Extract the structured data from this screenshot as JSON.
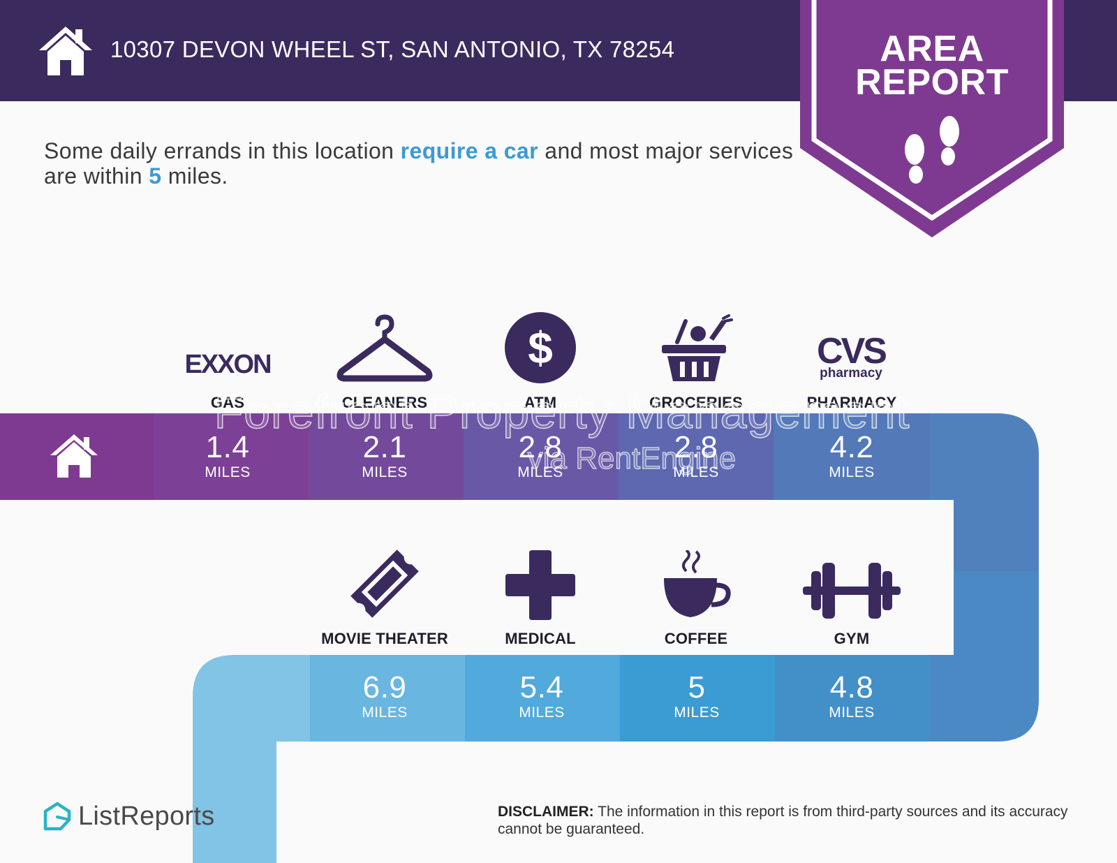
{
  "header": {
    "address": "10307 DEVON WHEEL ST, SAN ANTONIO, TX 78254",
    "home_icon": "house-icon"
  },
  "badge": {
    "line1": "AREA",
    "line2": "REPORT",
    "icon": "footprints-icon"
  },
  "intro": {
    "part1": "Some daily errands in this location ",
    "highlight1": "require a car",
    "part2": " and most major services are within ",
    "highlight2": "5",
    "part3": " miles."
  },
  "amenities_top": [
    {
      "label": "GAS",
      "distance": "1.4",
      "unit": "MILES",
      "icon": "exxon-logo"
    },
    {
      "label": "CLEANERS",
      "distance": "2.1",
      "unit": "MILES",
      "icon": "hanger-icon"
    },
    {
      "label": "ATM",
      "distance": "2.8",
      "unit": "MILES",
      "icon": "dollar-icon"
    },
    {
      "label": "GROCERIES",
      "distance": "2.8",
      "unit": "MILES",
      "icon": "grocery-basket-icon"
    },
    {
      "label": "PHARMACY",
      "distance": "4.2",
      "unit": "MILES",
      "icon": "cvs-pharmacy-logo"
    }
  ],
  "amenities_bottom": [
    {
      "label": "MOVIE THEATER",
      "distance": "6.9",
      "unit": "MILES",
      "icon": "ticket-icon"
    },
    {
      "label": "MEDICAL",
      "distance": "5.4",
      "unit": "MILES",
      "icon": "medical-cross-icon"
    },
    {
      "label": "COFFEE",
      "distance": "5",
      "unit": "MILES",
      "icon": "coffee-cup-icon"
    },
    {
      "label": "GYM",
      "distance": "4.8",
      "unit": "MILES",
      "icon": "dumbbell-icon"
    }
  ],
  "logos": {
    "exxon": "EXXON",
    "cvs_main": "CVS",
    "cvs_sub": "pharmacy"
  },
  "watermark": {
    "line1": "Forefront Property Management",
    "line2": "via RentEngine"
  },
  "footer": {
    "brand": "ListReports",
    "disclaimer_label": "DISCLAIMER:",
    "disclaimer_text": " The information in this report is from third-party sources and its accuracy cannot be guaranteed."
  },
  "colors": {
    "header_bg": "#3b2a5e",
    "badge_purple": "#7e3a91",
    "icon_dark": "#3b2a5e",
    "highlight_blue": "#3d9ad1"
  }
}
